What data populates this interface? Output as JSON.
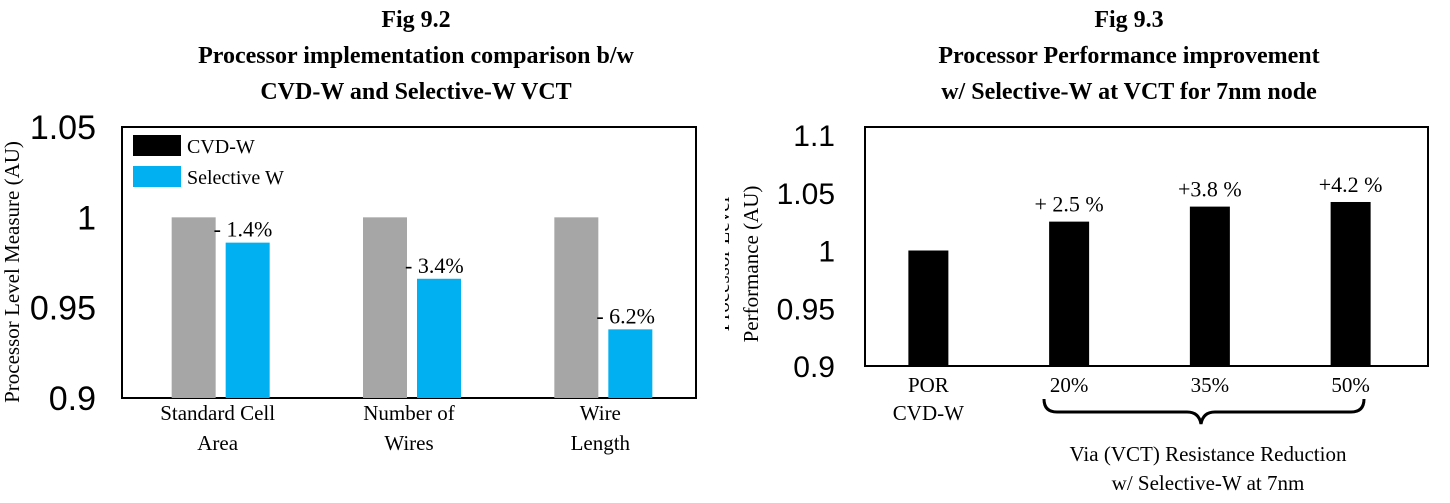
{
  "colors": {
    "cvd": "#a6a6a6",
    "selective": "#00b0f0",
    "bar_black": "#000000",
    "delta_green": "#548235",
    "legend_black": "#000000"
  },
  "chart_data": [
    {
      "type": "bar",
      "title_line1": "Fig 9.2",
      "title_line2": "Processor implementation comparison b/w",
      "title_line3": "CVD-W and Selective-W VCT",
      "ylabel": "Processor Level Measure (AU)",
      "xlabel": "",
      "ylim": [
        0.9,
        1.05
      ],
      "yticks": [
        "1.05",
        "1",
        "0.95",
        "0.9"
      ],
      "ytick_values": [
        1.05,
        1.0,
        0.95,
        0.9
      ],
      "categories_line1": [
        "Standard Cell",
        "Number of",
        "Wire"
      ],
      "categories_line2": [
        "Area",
        "Wires",
        "Length"
      ],
      "legend": [
        "CVD-W",
        "Selective W"
      ],
      "legend_placement": "top-left",
      "series": [
        {
          "name": "CVD-W",
          "values": [
            1.0,
            1.0,
            1.0
          ]
        },
        {
          "name": "Selective W",
          "values": [
            0.986,
            0.966,
            0.938
          ]
        }
      ],
      "annotations": [
        "- 1.4%",
        "- 3.4%",
        "- 6.2%"
      ],
      "grid": false
    },
    {
      "type": "bar",
      "title_line1": "Fig 9.3",
      "title_line2": "Processor Performance improvement",
      "title_line3": "w/ Selective-W at VCT for 7nm node",
      "ylabel_line1": "Processor Level",
      "ylabel_line2": "Performance (AU)",
      "ylim": [
        0.9,
        1.1
      ],
      "yticks": [
        "1.1",
        "1.05",
        "1",
        "0.95",
        "0.9"
      ],
      "ytick_values": [
        1.1,
        1.05,
        1.0,
        0.95,
        0.9
      ],
      "categories_line1": [
        "POR",
        "20%",
        "35%",
        "50%"
      ],
      "categories_line2": [
        "CVD-W",
        "",
        "",
        ""
      ],
      "values": [
        1.0,
        1.025,
        1.038,
        1.042
      ],
      "annotations": [
        "",
        "+ 2.5 %",
        "+3.8 %",
        "+4.2 %"
      ],
      "xgroup_label_line1": "Via (VCT) Resistance Reduction",
      "xgroup_label_line2": "w/ Selective-W at 7nm",
      "grid": false
    }
  ]
}
